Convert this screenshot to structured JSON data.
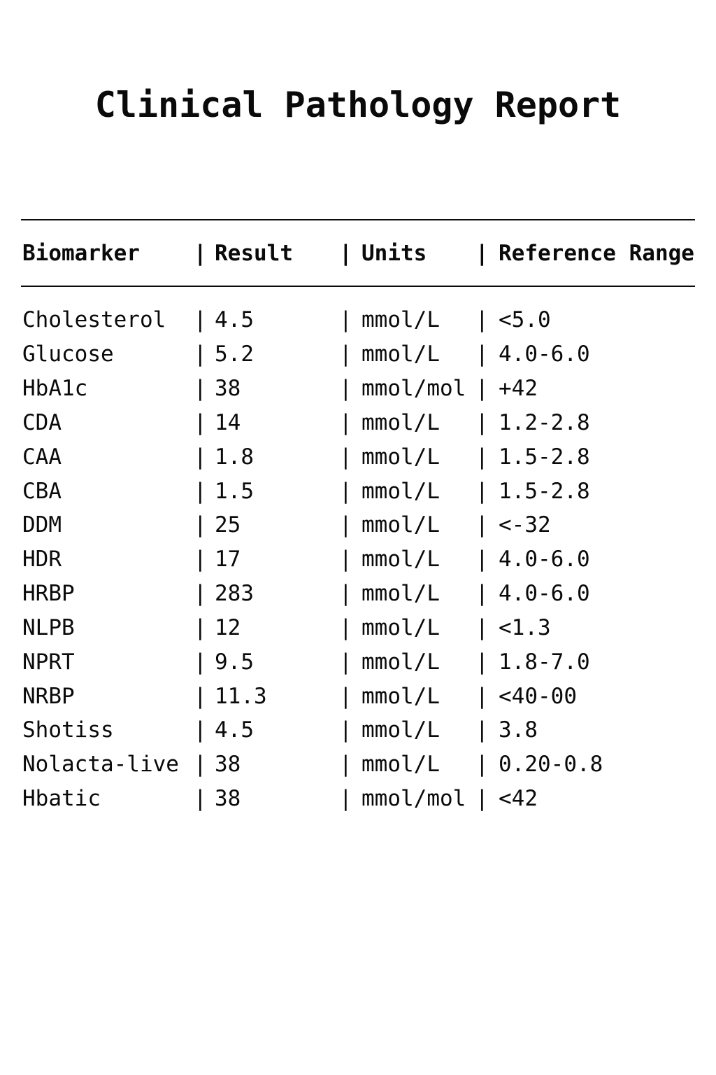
{
  "page": {
    "title": "Clinical Pathology Report"
  },
  "table": {
    "separator": "|",
    "headers": {
      "biomarker": "Biomarker",
      "result": "Result",
      "units": "Units",
      "reference": "Reference Range"
    },
    "rows": [
      {
        "biomarker": "Cholesterol",
        "result": "4.5",
        "units": "mmol/L",
        "reference": "<5.0"
      },
      {
        "biomarker": "Glucose",
        "result": "5.2",
        "units": "mmol/L",
        "reference": "4.0-6.0"
      },
      {
        "biomarker": "HbA1c",
        "result": "38",
        "units": "mmol/mol",
        "reference": "+42"
      },
      {
        "biomarker": "CDA",
        "result": "14",
        "units": "mmol/L",
        "reference": "1.2-2.8"
      },
      {
        "biomarker": "CAA",
        "result": "1.8",
        "units": "mmol/L",
        "reference": "1.5-2.8"
      },
      {
        "biomarker": "CBA",
        "result": "1.5",
        "units": "mmol/L",
        "reference": "1.5-2.8"
      },
      {
        "biomarker": "DDM",
        "result": "25",
        "units": "mmol/L",
        "reference": "<-32"
      },
      {
        "biomarker": "HDR",
        "result": "17",
        "units": "mmol/L",
        "reference": "4.0-6.0"
      },
      {
        "biomarker": "HRBP",
        "result": "283",
        "units": "mmol/L",
        "reference": "4.0-6.0"
      },
      {
        "biomarker": "NLPB",
        "result": "12",
        "units": "mmol/L",
        "reference": "<1.3"
      },
      {
        "biomarker": "NPRT",
        "result": "9.5",
        "units": "mmol/L",
        "reference": "1.8-7.0"
      },
      {
        "biomarker": "NRBP",
        "result": "11.3",
        "units": "mmol/L",
        "reference": "<40-00"
      },
      {
        "biomarker": "Shotiss",
        "result": "4.5",
        "units": "mmol/L",
        "reference": "3.8"
      },
      {
        "biomarker": "Nolacta-live",
        "result": "38",
        "units": "mmol/L",
        "reference": "0.20-0.8"
      },
      {
        "biomarker": "Hbatic",
        "result": "38",
        "units": "mmol/mol",
        "reference": "<42"
      }
    ]
  },
  "colors": {
    "background": "#ffffff",
    "text": "#0a0a0a",
    "rule": "#0a0a0a"
  }
}
